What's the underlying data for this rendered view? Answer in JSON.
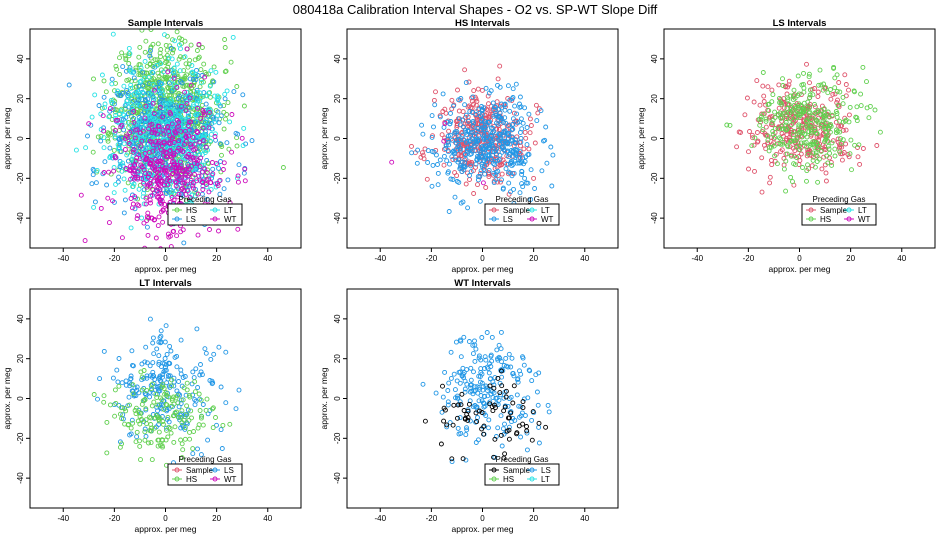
{
  "figure": {
    "title": "080418a   Calibration Interval Shapes - O2 vs. SP-WT Slope Diff"
  },
  "colors": {
    "Sample": "#df536b",
    "HS": "#61d04f",
    "LS": "#2297e6",
    "LT": "#28e2e5",
    "WT": "#cd0bbc",
    "axis": "#000000"
  },
  "chart_data": [
    {
      "type": "scatter",
      "title": "Sample Intervals",
      "xlabel": "approx. per meg",
      "ylabel": "approx. per meg",
      "xlim": [
        -53,
        53
      ],
      "ylim": [
        -55,
        55
      ],
      "xticks": [
        -40,
        -20,
        0,
        20,
        40
      ],
      "yticks": [
        -40,
        -20,
        0,
        20,
        40
      ],
      "legend": {
        "title": "Preceding Gas",
        "position": "bottom-right",
        "entries": [
          "HS",
          "LT",
          "LS",
          "WT"
        ]
      },
      "series": [
        {
          "name": "HS",
          "n": 800,
          "mean": [
            0,
            14
          ],
          "sd": [
            10,
            18
          ],
          "seed": 11
        },
        {
          "name": "LS",
          "n": 550,
          "mean": [
            0,
            0
          ],
          "sd": [
            11,
            17
          ],
          "seed": 12
        },
        {
          "name": "LT",
          "n": 450,
          "mean": [
            0,
            3
          ],
          "sd": [
            12,
            18
          ],
          "seed": 13
        },
        {
          "name": "WT",
          "n": 450,
          "mean": [
            2,
            -15
          ],
          "sd": [
            11,
            18
          ],
          "seed": 14
        }
      ]
    },
    {
      "type": "scatter",
      "title": "HS Intervals",
      "xlabel": "approx. per meg",
      "ylabel": "approx. per meg",
      "xlim": [
        -53,
        53
      ],
      "ylim": [
        -55,
        55
      ],
      "xticks": [
        -40,
        -20,
        0,
        20,
        40
      ],
      "yticks": [
        -40,
        -20,
        0,
        20,
        40
      ],
      "legend": {
        "title": "Preceding Gas",
        "position": "bottom-right",
        "entries": [
          "Sample",
          "LT",
          "LS",
          "WT"
        ]
      },
      "series": [
        {
          "name": "Sample",
          "n": 380,
          "mean": [
            0,
            0
          ],
          "sd": [
            9,
            11
          ],
          "seed": 21
        },
        {
          "name": "LS",
          "n": 420,
          "mean": [
            2,
            -3
          ],
          "sd": [
            10,
            12
          ],
          "seed": 22
        },
        {
          "name": "WT",
          "n": 4,
          "mean": [
            -20,
            5
          ],
          "sd": [
            14,
            16
          ],
          "seed": 23
        }
      ]
    },
    {
      "type": "scatter",
      "title": "LS Intervals",
      "xlabel": "approx. per meg",
      "ylabel": "approx. per meg",
      "xlim": [
        -53,
        53
      ],
      "ylim": [
        -55,
        55
      ],
      "xticks": [
        -40,
        -20,
        0,
        20,
        40
      ],
      "yticks": [
        -40,
        -20,
        0,
        20,
        40
      ],
      "legend": {
        "title": "Preceding Gas",
        "position": "bottom-right",
        "entries": [
          "Sample",
          "LT",
          "HS",
          "WT"
        ]
      },
      "series": [
        {
          "name": "Sample",
          "n": 320,
          "mean": [
            0,
            5
          ],
          "sd": [
            11,
            11
          ],
          "seed": 31
        },
        {
          "name": "HS",
          "n": 300,
          "mean": [
            2,
            7
          ],
          "sd": [
            11,
            12
          ],
          "seed": 32
        }
      ]
    },
    {
      "type": "scatter",
      "title": "LT Intervals",
      "xlabel": "approx. per meg",
      "ylabel": "approx. per meg",
      "xlim": [
        -53,
        53
      ],
      "ylim": [
        -55,
        55
      ],
      "xticks": [
        -40,
        -20,
        0,
        20,
        40
      ],
      "yticks": [
        -40,
        -20,
        0,
        20,
        40
      ],
      "legend": {
        "title": "Preceding Gas",
        "position": "bottom-right",
        "entries": [
          "Sample",
          "LS",
          "HS",
          "WT"
        ]
      },
      "series": [
        {
          "name": "LS",
          "n": 230,
          "mean": [
            0,
            5
          ],
          "sd": [
            11,
            13
          ],
          "seed": 41
        },
        {
          "name": "HS",
          "n": 170,
          "mean": [
            -2,
            -8
          ],
          "sd": [
            11,
            11
          ],
          "seed": 42
        }
      ]
    },
    {
      "type": "scatter",
      "title": "WT Intervals",
      "xlabel": "approx. per meg",
      "ylabel": "approx. per meg",
      "xlim": [
        -53,
        53
      ],
      "ylim": [
        -55,
        55
      ],
      "xticks": [
        -40,
        -20,
        0,
        20,
        40
      ],
      "yticks": [
        -40,
        -20,
        0,
        20,
        40
      ],
      "legend": {
        "title": "Preceding Gas",
        "position": "bottom-right",
        "entries": [
          "Sample",
          "LS",
          "HS",
          "LT"
        ]
      },
      "series": [
        {
          "name": "LS",
          "n": 230,
          "mean": [
            2,
            3
          ],
          "sd": [
            10,
            14
          ],
          "seed": 51
        },
        {
          "name": "Sample",
          "n": 70,
          "mean": [
            3,
            -10
          ],
          "sd": [
            10,
            10
          ],
          "seed": 52,
          "color": "#000000"
        }
      ]
    }
  ]
}
